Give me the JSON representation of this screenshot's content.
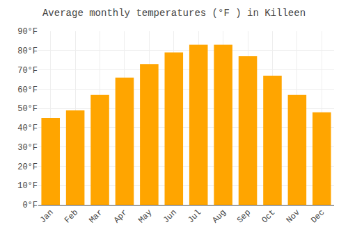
{
  "chart_data": {
    "type": "bar",
    "title": "Average monthly temperatures (°F ) in Killeen",
    "categories": [
      "Jan",
      "Feb",
      "Mar",
      "Apr",
      "May",
      "Jun",
      "Jul",
      "Aug",
      "Sep",
      "Oct",
      "Nov",
      "Dec"
    ],
    "values": [
      45,
      49,
      57,
      66,
      73,
      79,
      83,
      83,
      77,
      67,
      57,
      48
    ],
    "color": "#FFA500",
    "ylim": [
      0,
      90
    ],
    "yticks": [
      {
        "value": 0,
        "label": "0°F"
      },
      {
        "value": 10,
        "label": "10°F"
      },
      {
        "value": 20,
        "label": "20°F"
      },
      {
        "value": 30,
        "label": "30°F"
      },
      {
        "value": 40,
        "label": "40°F"
      },
      {
        "value": 50,
        "label": "50°F"
      },
      {
        "value": 60,
        "label": "60°F"
      },
      {
        "value": 70,
        "label": "70°F"
      },
      {
        "value": 80,
        "label": "80°F"
      },
      {
        "value": 90,
        "label": "90°F"
      }
    ],
    "grid": true
  }
}
